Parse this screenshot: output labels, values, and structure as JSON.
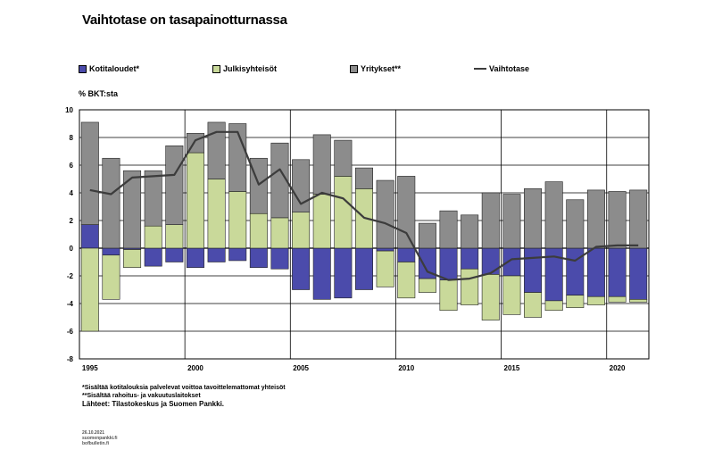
{
  "title": "Vaihtotase on tasapainotturnassa",
  "legend": {
    "households": "Kotitaloudet*",
    "public": "Julkisyhteisöt",
    "firms": "Yritykset**",
    "current_account": "Vaihtotase"
  },
  "unit_label": "% BKT:sta",
  "footnotes": {
    "note1": "*Sisältää kotitalouksia palvelevat voittoa tavoittelemattomat yhteisöt",
    "note2": "**Sisältää rahoitus- ja vakuutuslaitokset",
    "source": "Lähteet: Tilastokeskus ja Suomen Pankki."
  },
  "small_marks": {
    "line1": "26.10.2021",
    "line2": "suomenpankki.fi",
    "line3": "bofbulletin.fi"
  },
  "colors": {
    "households": "#4b4bab",
    "public": "#c9d99a",
    "firms": "#8c8c8c",
    "line": "#3c3c3c"
  },
  "chart_data": {
    "type": "bar",
    "stacked": true,
    "title": "Vaihtotase on tasapainotturnassa",
    "ylabel": "% BKT:sta",
    "ylim": [
      -8,
      10
    ],
    "yticks": [
      -8,
      -6,
      -4,
      -2,
      0,
      2,
      4,
      6,
      8,
      10
    ],
    "x": [
      1995,
      1996,
      1997,
      1998,
      1999,
      2000,
      2001,
      2002,
      2003,
      2004,
      2005,
      2006,
      2007,
      2008,
      2009,
      2010,
      2011,
      2012,
      2013,
      2014,
      2015,
      2016,
      2017,
      2018,
      2019,
      2020,
      2021
    ],
    "x_tick_labels": [
      1995,
      2000,
      2005,
      2010,
      2015,
      2020
    ],
    "grid": "horizontal",
    "legend_position": "top",
    "series": [
      {
        "name": "Kotitaloudet*",
        "values": [
          1.7,
          -0.5,
          -0.1,
          -1.3,
          -1.0,
          -1.4,
          -1.0,
          -0.9,
          -1.4,
          -1.5,
          -3.0,
          -3.7,
          -3.6,
          -3.0,
          -0.2,
          -1.0,
          -2.2,
          -2.3,
          -1.5,
          -1.9,
          -2.0,
          -3.2,
          -3.8,
          -3.4,
          -3.5,
          -3.5,
          -3.7
        ]
      },
      {
        "name": "Julkisyhteisöt",
        "values": [
          -6.0,
          -3.2,
          -1.3,
          1.6,
          1.7,
          6.9,
          5.0,
          4.1,
          2.5,
          2.2,
          2.6,
          3.9,
          5.2,
          4.3,
          -2.6,
          -2.6,
          -1.0,
          -2.2,
          -2.6,
          -3.3,
          -2.8,
          -1.8,
          -0.7,
          -0.9,
          -0.6,
          -0.4,
          -0.2
        ]
      },
      {
        "name": "Yritykset**",
        "values": [
          7.4,
          6.5,
          5.6,
          4.0,
          5.7,
          1.4,
          4.1,
          4.9,
          4.0,
          5.4,
          3.8,
          4.3,
          2.6,
          1.5,
          4.9,
          5.2,
          1.8,
          2.7,
          2.4,
          4.0,
          3.9,
          4.3,
          4.8,
          3.5,
          4.2,
          4.1,
          4.2
        ]
      },
      {
        "name": "Vaihtotase",
        "type": "line",
        "values": [
          4.2,
          3.9,
          5.1,
          5.2,
          5.3,
          7.8,
          8.4,
          8.4,
          4.6,
          5.7,
          3.2,
          4.0,
          3.6,
          2.2,
          1.8,
          1.1,
          -1.7,
          -2.3,
          -2.2,
          -1.8,
          -0.8,
          -0.7,
          -0.6,
          -0.9,
          0.1,
          0.2,
          0.2
        ]
      }
    ]
  }
}
